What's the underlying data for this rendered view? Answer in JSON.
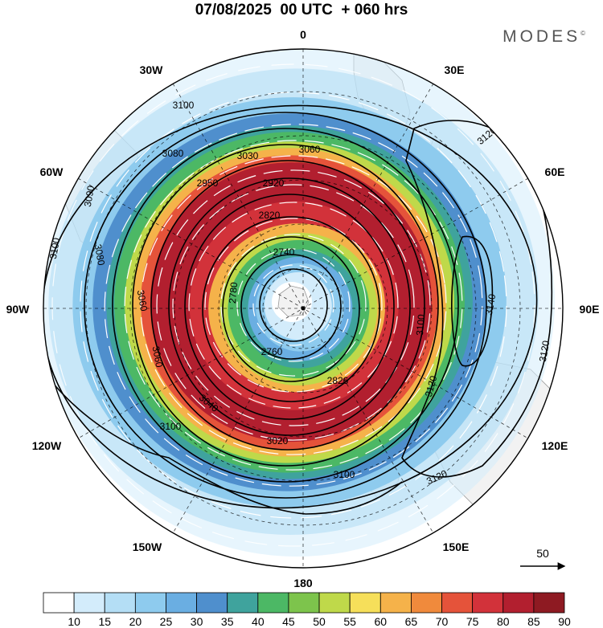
{
  "title": "07/08/2025  00 UTC  + 060 hrs",
  "brand": "MODES",
  "brand_mark": "©",
  "longitude_labels": [
    "0",
    "30E",
    "60E",
    "90E",
    "120E",
    "150E",
    "180",
    "150W",
    "120W",
    "90W",
    "60W",
    "30W"
  ],
  "vector_legend": {
    "label": "50"
  },
  "colors": {
    "land": "#f2f2f2",
    "coast": "#9a9a9a",
    "vector": "#ffffff",
    "contour": "#000000"
  },
  "colorbar": {
    "labels": [
      "10",
      "15",
      "20",
      "25",
      "30",
      "35",
      "40",
      "45",
      "50",
      "55",
      "60",
      "65",
      "70",
      "75",
      "80",
      "85",
      "90"
    ],
    "colors": [
      "#ffffff",
      "#d3ecfb",
      "#b4def5",
      "#8ecbee",
      "#6aaee2",
      "#4f8fcd",
      "#3fa39d",
      "#4cb865",
      "#7dc44c",
      "#bfd94a",
      "#f6df5a",
      "#f5b24a",
      "#f08a3c",
      "#e5533a",
      "#d2323a",
      "#b21f2f",
      "#8e1a22"
    ]
  },
  "chart_data": {
    "type": "map",
    "projection": "south polar stereographic",
    "field": "wind speed (shaded) with streamlines and geopotential height contours",
    "shading_levels": [
      10,
      15,
      20,
      25,
      30,
      35,
      40,
      45,
      50,
      55,
      60,
      65,
      70,
      75,
      80,
      85,
      90
    ],
    "contour_labels": [
      {
        "text": "3100",
        "id": "c3100a"
      },
      {
        "text": "3080",
        "id": "c3080a"
      },
      {
        "text": "3030",
        "id": "c3030"
      },
      {
        "text": "3060",
        "id": "c3060a"
      },
      {
        "text": "2950",
        "id": "c2950"
      },
      {
        "text": "2920",
        "id": "c2920"
      },
      {
        "text": "2820",
        "id": "c2820a"
      },
      {
        "text": "3090",
        "id": "c3090"
      },
      {
        "text": "3080",
        "id": "c3080b"
      },
      {
        "text": "3100",
        "id": "c3100b"
      },
      {
        "text": "2740",
        "id": "c2740"
      },
      {
        "text": "2780",
        "id": "c2780"
      },
      {
        "text": "3060",
        "id": "c3060b"
      },
      {
        "text": "2760",
        "id": "c2760"
      },
      {
        "text": "2826",
        "id": "c2826"
      },
      {
        "text": "3060",
        "id": "c3060c"
      },
      {
        "text": "3040",
        "id": "c3040"
      },
      {
        "text": "3020",
        "id": "c3020"
      },
      {
        "text": "3100",
        "id": "c3100c"
      },
      {
        "text": "3100",
        "id": "c3100d"
      },
      {
        "text": "3120",
        "id": "c3120a"
      },
      {
        "text": "3140",
        "id": "c3140"
      },
      {
        "text": "3120",
        "id": "c3120b"
      },
      {
        "text": "3120",
        "id": "c3120c"
      },
      {
        "text": "3120",
        "id": "c3120d"
      },
      {
        "text": "3100",
        "id": "c3100e"
      }
    ]
  }
}
